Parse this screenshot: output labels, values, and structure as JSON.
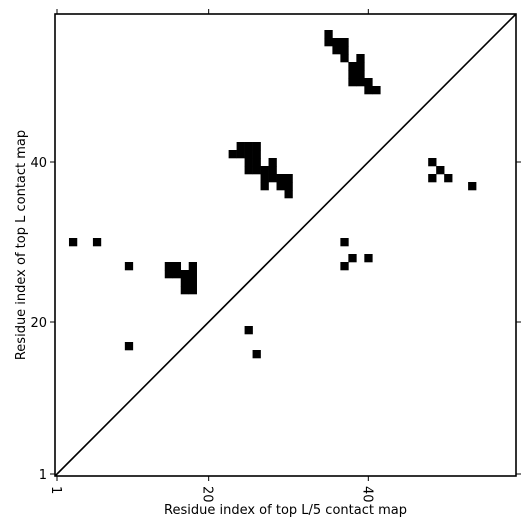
{
  "chart_data": {
    "type": "heatmap",
    "subtype": "contact-map",
    "title": "",
    "xlabel": "Residue index of top L/5 contact map",
    "ylabel": "Residue index of top L contact map",
    "xlim": [
      0.75,
      58.5
    ],
    "ylim": [
      0.75,
      58.5
    ],
    "x_ticks": [
      1,
      20,
      40
    ],
    "y_ticks": [
      1,
      20,
      40
    ],
    "x_tick_rotation": -90,
    "diagonal_line": true,
    "grid": false,
    "legend": "none",
    "colors": {
      "cell": "#000000",
      "background": "#ffffff",
      "axes": "#000000"
    },
    "contacts_lower": [
      [
        3,
        30
      ],
      [
        6,
        30
      ],
      [
        10,
        27
      ],
      [
        15,
        27
      ],
      [
        15,
        26
      ],
      [
        16,
        27
      ],
      [
        16,
        26
      ],
      [
        17,
        26
      ],
      [
        17,
        25
      ],
      [
        17,
        24
      ],
      [
        18,
        27
      ],
      [
        18,
        26
      ],
      [
        18,
        25
      ],
      [
        18,
        24
      ],
      [
        10,
        17
      ],
      [
        25,
        19
      ],
      [
        26,
        16
      ],
      [
        37,
        30
      ],
      [
        38,
        28
      ],
      [
        37,
        27
      ],
      [
        40,
        28
      ],
      [
        48,
        40
      ],
      [
        48,
        38
      ],
      [
        49,
        39
      ],
      [
        50,
        38
      ],
      [
        53,
        37
      ]
    ],
    "contacts_upper": [
      [
        35,
        56
      ],
      [
        35,
        55
      ],
      [
        36,
        55
      ],
      [
        36,
        54
      ],
      [
        37,
        55
      ],
      [
        37,
        54
      ],
      [
        37,
        53
      ],
      [
        38,
        52
      ],
      [
        38,
        51
      ],
      [
        38,
        50
      ],
      [
        39,
        53
      ],
      [
        39,
        52
      ],
      [
        39,
        51
      ],
      [
        39,
        50
      ],
      [
        40,
        50
      ],
      [
        40,
        49
      ],
      [
        41,
        49
      ],
      [
        23,
        41
      ],
      [
        24,
        42
      ],
      [
        24,
        41
      ],
      [
        25,
        42
      ],
      [
        25,
        41
      ],
      [
        25,
        40
      ],
      [
        25,
        39
      ],
      [
        26,
        42
      ],
      [
        26,
        41
      ],
      [
        26,
        40
      ],
      [
        26,
        39
      ],
      [
        27,
        39
      ],
      [
        27,
        38
      ],
      [
        27,
        37
      ],
      [
        28,
        40
      ],
      [
        28,
        39
      ],
      [
        28,
        38
      ],
      [
        29,
        38
      ],
      [
        29,
        37
      ],
      [
        30,
        38
      ],
      [
        30,
        37
      ],
      [
        30,
        36
      ]
    ]
  }
}
